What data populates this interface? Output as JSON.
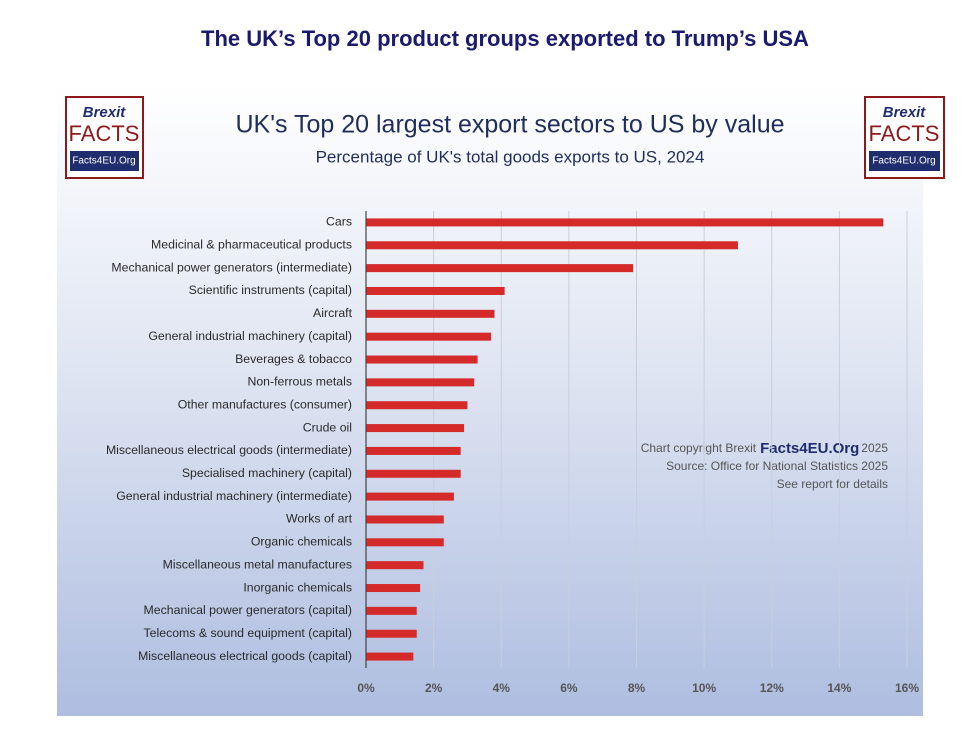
{
  "page_title": "The UK’s Top 20 product groups exported to Trump’s USA",
  "logo": {
    "top": "Brexit",
    "middle": "FACTS",
    "bottom": "Facts4EU.Org"
  },
  "chart_data": {
    "type": "hbar",
    "title": "UK's Top 20 largest export sectors to US by value",
    "subtitle": "Percentage of UK's total goods exports to US, 2024",
    "categories": [
      "Cars",
      "Medicinal & pharmaceutical products",
      "Mechanical power generators (intermediate)",
      "Scientific instruments (capital)",
      "Aircraft",
      "General industrial machinery (capital)",
      "Beverages & tobacco",
      "Non-ferrous metals",
      "Other manufactures (consumer)",
      "Crude oil",
      "Miscellaneous electrical goods (intermediate)",
      "Specialised machinery (capital)",
      "General industrial machinery (intermediate)",
      "Works of art",
      "Organic chemicals",
      "Miscellaneous metal manufactures",
      "Inorganic chemicals",
      "Mechanical power generators (capital)",
      "Telecoms & sound equipment (capital)",
      "Miscellaneous electrical goods (capital)"
    ],
    "values": [
      15.3,
      11.0,
      7.9,
      4.1,
      3.8,
      3.7,
      3.3,
      3.2,
      3.0,
      2.9,
      2.8,
      2.8,
      2.6,
      2.3,
      2.3,
      1.7,
      1.6,
      1.5,
      1.5,
      1.4
    ],
    "color": "#d42a2a",
    "xlim": [
      0,
      16
    ],
    "xticks": [
      {
        "value": 0,
        "label": "0%"
      },
      {
        "value": 2,
        "label": "2%"
      },
      {
        "value": 4,
        "label": "4%"
      },
      {
        "value": 6,
        "label": "6%"
      },
      {
        "value": 8,
        "label": "8%"
      },
      {
        "value": 10,
        "label": "10%"
      },
      {
        "value": 12,
        "label": "12%"
      },
      {
        "value": 14,
        "label": "14%"
      },
      {
        "value": 16,
        "label": "16%"
      }
    ],
    "grid": true,
    "copyright": [
      "Chart copyright Brexit",
      "Facts4EU.Org",
      "2025"
    ],
    "annotations": [
      "Source: Office for National Statistics 2025",
      "See report for details"
    ]
  }
}
